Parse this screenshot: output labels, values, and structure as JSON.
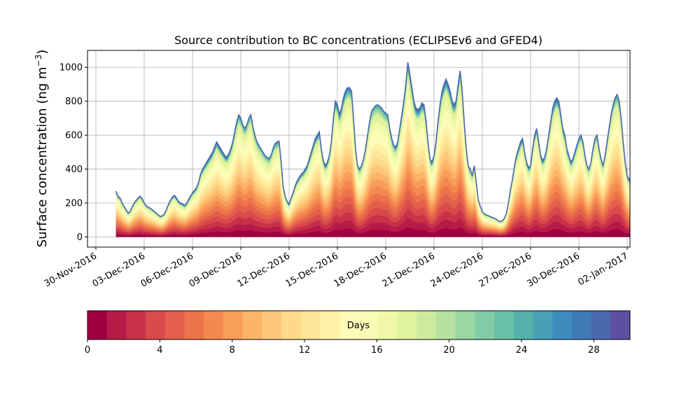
{
  "chart_data": {
    "type": "area",
    "title": "Source contribution to BC concentrations (ECLIPSEv6 and GFED4)",
    "xlabel": "",
    "ylabel": "Surface concentration (ng m",
    "ylabel_sup": "−3",
    "ylabel_close": ")",
    "grid": true,
    "ylim": [
      -60,
      1100
    ],
    "yticks": [
      0,
      200,
      400,
      600,
      800,
      1000
    ],
    "xticks": [
      "30-Nov-2016",
      "03-Dec-2016",
      "06-Dec-2016",
      "09-Dec-2016",
      "12-Dec-2016",
      "15-Dec-2016",
      "18-Dec-2016",
      "21-Dec-2016",
      "24-Dec-2016",
      "27-Dec-2016",
      "30-Dec-2016",
      "02-Jan-2017"
    ],
    "x_start": "2016-12-01T06:00",
    "x_step_hours": 3,
    "total": [
      270,
      240,
      230,
      200,
      180,
      160,
      140,
      150,
      175,
      200,
      215,
      230,
      240,
      225,
      200,
      185,
      175,
      170,
      160,
      150,
      140,
      130,
      120,
      125,
      135,
      160,
      190,
      215,
      235,
      245,
      230,
      210,
      200,
      195,
      185,
      195,
      220,
      240,
      260,
      275,
      290,
      320,
      370,
      400,
      420,
      440,
      460,
      480,
      500,
      530,
      560,
      540,
      520,
      500,
      480,
      470,
      490,
      520,
      560,
      620,
      680,
      720,
      700,
      660,
      640,
      660,
      700,
      720,
      650,
      600,
      560,
      540,
      520,
      500,
      480,
      470,
      460,
      480,
      520,
      550,
      560,
      565,
      450,
      300,
      240,
      210,
      190,
      230,
      260,
      300,
      330,
      350,
      370,
      380,
      400,
      420,
      460,
      500,
      540,
      580,
      600,
      620,
      520,
      450,
      420,
      440,
      480,
      560,
      700,
      800,
      780,
      720,
      760,
      820,
      860,
      880,
      880,
      860,
      700,
      520,
      420,
      400,
      420,
      460,
      520,
      600,
      680,
      740,
      760,
      775,
      780,
      770,
      760,
      740,
      730,
      720,
      640,
      580,
      540,
      530,
      560,
      640,
      720,
      800,
      900,
      1030,
      960,
      880,
      800,
      760,
      750,
      760,
      790,
      780,
      690,
      560,
      460,
      440,
      480,
      560,
      680,
      780,
      860,
      900,
      930,
      900,
      860,
      800,
      780,
      800,
      900,
      980,
      860,
      680,
      520,
      420,
      400,
      360,
      420,
      320,
      220,
      180,
      150,
      135,
      130,
      125,
      120,
      115,
      110,
      105,
      95,
      90,
      95,
      110,
      140,
      200,
      280,
      340,
      420,
      480,
      520,
      560,
      580,
      500,
      440,
      410,
      420,
      520,
      600,
      640,
      560,
      480,
      450,
      470,
      520,
      600,
      680,
      760,
      800,
      820,
      800,
      720,
      640,
      600,
      520,
      480,
      440,
      460,
      500,
      540,
      580,
      600,
      560,
      480,
      420,
      400,
      440,
      520,
      580,
      600,
      520,
      460,
      420,
      480,
      560,
      640,
      720,
      780,
      820,
      840,
      800,
      700,
      560,
      440,
      360,
      340,
      320,
      330,
      350,
      360,
      380,
      370,
      360,
      380,
      360,
      370,
      390,
      400,
      420,
      440,
      380,
      260,
      180,
      160,
      150,
      160,
      180,
      200,
      220,
      240,
      220,
      230,
      260,
      300,
      340,
      380,
      420,
      460,
      480,
      460,
      420,
      340,
      240,
      170,
      165,
      170,
      190,
      210,
      240,
      280,
      320,
      360,
      400,
      440,
      480,
      520,
      540,
      520,
      500,
      470,
      450,
      460,
      470,
      480,
      490,
      500,
      450,
      380,
      300,
      220,
      180,
      160,
      150,
      140,
      130,
      120,
      110,
      100,
      90,
      85,
      80,
      75,
      80,
      90,
      100,
      110,
      125,
      140,
      160,
      175,
      165,
      150,
      140,
      145,
      155,
      160,
      150,
      140,
      135,
      145,
      160,
      170,
      165,
      150,
      140,
      150,
      165,
      175,
      160,
      140,
      130,
      140,
      150,
      160,
      175,
      185,
      200,
      215,
      225,
      230,
      240,
      255,
      270,
      290,
      320,
      370,
      420,
      470,
      490,
      480,
      440,
      380,
      320,
      280,
      270,
      300,
      360,
      420,
      480,
      520,
      560,
      590,
      620,
      640,
      660,
      680,
      650,
      600,
      560,
      520,
      480,
      440,
      400,
      360,
      320,
      300,
      330,
      370,
      410,
      460,
      520,
      580,
      640,
      700,
      760,
      800,
      840,
      870,
      880,
      860,
      820,
      760,
      680,
      600,
      540,
      470,
      400,
      330,
      270,
      220,
      180,
      160,
      150,
      140,
      130,
      120,
      110,
      100,
      90,
      80,
      70,
      65,
      70,
      80,
      90,
      100,
      115,
      130,
      150,
      170,
      185,
      200,
      230,
      260,
      300,
      340,
      380,
      400,
      390,
      360,
      320,
      280,
      250,
      240,
      230,
      220,
      200,
      190,
      180,
      170,
      160,
      150,
      120,
      90,
      75,
      70,
      80,
      100,
      120,
      140,
      160,
      170,
      165,
      155,
      140,
      130,
      120,
      110,
      115,
      130,
      145,
      160,
      175,
      185,
      190,
      180,
      170,
      160,
      150,
      140,
      130,
      120,
      110,
      100,
      95,
      90,
      85,
      80,
      75,
      80,
      90,
      100,
      110,
      120,
      130,
      140,
      150,
      160,
      170,
      180,
      190,
      200,
      220,
      260,
      340,
      420,
      520,
      620,
      700,
      750,
      760,
      740,
      680,
      560,
      420,
      340,
      320,
      330,
      360,
      420,
      500,
      560,
      600,
      570,
      560,
      580,
      620,
      680,
      740,
      800,
      840,
      860,
      820,
      720,
      560,
      400,
      300,
      280,
      320,
      380,
      440,
      520,
      580,
      620,
      560,
      440
    ]
  },
  "colorbar": {
    "label": "Days",
    "min": 0,
    "max": 30,
    "ticks": [
      "0",
      "4",
      "8",
      "12",
      "16",
      "20",
      "24",
      "28"
    ],
    "colors": [
      "#9e0142",
      "#b41b46",
      "#c93149",
      "#d84a4b",
      "#e35e4b",
      "#ed734b",
      "#f4894f",
      "#f99e5a",
      "#fcb469",
      "#fec77a",
      "#fed98b",
      "#fee698",
      "#fff1a8",
      "#fffbb8",
      "#f9fcb5",
      "#eef8a8",
      "#e0f29b",
      "#cdeb9d",
      "#b6e1a0",
      "#9bd6a4",
      "#82cba7",
      "#6ac0a6",
      "#56b1aa",
      "#4a9fb5",
      "#3d8cbd",
      "#3f7ab6",
      "#4b67ad",
      "#5e4fa2"
    ]
  }
}
